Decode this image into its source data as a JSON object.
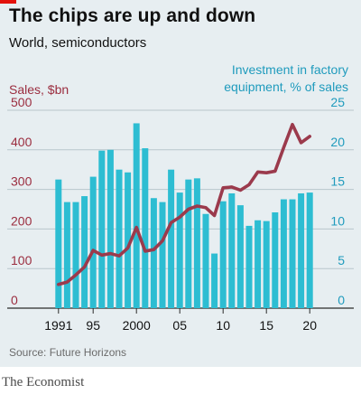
{
  "title": "The chips are up and down",
  "subtitle": "World, semiconductors",
  "brand": "The Economist",
  "source": "Source: Future Horizons",
  "colors": {
    "panel": "#e7eef1",
    "bars": "#2dbdd2",
    "line": "#9b3a4c",
    "left_axis_text": "#9b2d3f",
    "right_axis_text": "#1f9bbd",
    "brand_red": "#e3120b"
  },
  "chart_data": {
    "type": "bar",
    "title": "The chips are up and down",
    "subtitle": "World, semiconductors",
    "x": [
      1991,
      1992,
      1993,
      1994,
      1995,
      1996,
      1997,
      1998,
      1999,
      2000,
      2001,
      2002,
      2003,
      2004,
      2005,
      2006,
      2007,
      2008,
      2009,
      2010,
      2011,
      2012,
      2013,
      2014,
      2015,
      2016,
      2017,
      2018,
      2019,
      2020
    ],
    "x_tick_labels": [
      "1991",
      "95",
      "2000",
      "05",
      "10",
      "15",
      "20"
    ],
    "x_tick_years": [
      1991,
      1995,
      2000,
      2005,
      2010,
      2015,
      2020
    ],
    "left_axis": {
      "label": "Sales, $bn",
      "ticks": [
        0,
        100,
        200,
        300,
        400,
        500
      ],
      "ylim": [
        0,
        500
      ]
    },
    "right_axis": {
      "label_lines": [
        "Investment in factory",
        "equipment, % of sales"
      ],
      "ticks": [
        0,
        5,
        10,
        15,
        20,
        25
      ],
      "ylim": [
        0,
        25
      ]
    },
    "grid": true,
    "series": [
      {
        "name": "Sales, $bn",
        "type": "bar",
        "axis": "left",
        "values": [
          325,
          268,
          268,
          283,
          332,
          398,
          400,
          350,
          343,
          467,
          404,
          278,
          268,
          350,
          292,
          325,
          328,
          238,
          138,
          270,
          290,
          260,
          208,
          222,
          220,
          242,
          275,
          275,
          290,
          292
        ]
      },
      {
        "name": "Investment in factory equipment, % of sales",
        "type": "line",
        "axis": "right",
        "values": [
          3.0,
          3.3,
          4.2,
          5.2,
          7.3,
          6.7,
          6.9,
          6.6,
          7.6,
          10.2,
          7.2,
          7.4,
          8.5,
          10.8,
          11.5,
          12.5,
          12.9,
          12.7,
          11.7,
          15.2,
          15.3,
          14.9,
          15.6,
          17.2,
          17.1,
          17.3,
          20.3,
          23.2,
          20.9,
          21.7
        ]
      }
    ]
  }
}
